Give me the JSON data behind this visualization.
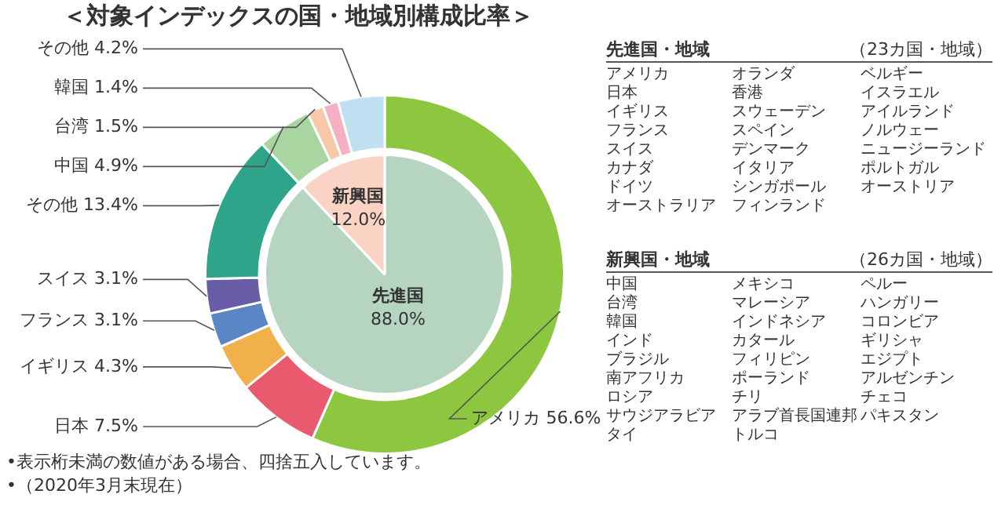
{
  "chart_data": [
    {
      "type": "donut",
      "title": "＜対象インデックスの国・地域別構成比率＞",
      "categories": [
        "アメリカ",
        "日本",
        "イギリス",
        "フランス",
        "スイス",
        "その他",
        "中国",
        "台湾",
        "韓国",
        "その他"
      ],
      "values": [
        56.6,
        7.5,
        4.3,
        3.1,
        3.1,
        13.4,
        4.9,
        1.5,
        1.4,
        4.2
      ],
      "value_labels": [
        "56.6%",
        "7.5%",
        "4.3%",
        "3.1%",
        "3.1%",
        "13.4%",
        "4.9%",
        "1.5%",
        "1.4%",
        "4.2%"
      ],
      "colors": [
        "#8dc63f",
        "#e95a6e",
        "#f0b14a",
        "#5b86c5",
        "#6a5da8",
        "#2ea58a",
        "#a8d5a0",
        "#f7c9a8",
        "#f6b0c4",
        "#c0dff0"
      ],
      "legend": false,
      "annotations": [
        "•表示桁未満の数値がある場合、四捨五入しています。",
        "•（2020年3月末現在）"
      ]
    },
    {
      "type": "pie",
      "categories": [
        "先進国",
        "新興国"
      ],
      "values": [
        88.0,
        12.0
      ],
      "value_labels": [
        "88.0%",
        "12.0%"
      ],
      "colors": [
        "#b5d5c0",
        "#fbd3c5"
      ],
      "legend": false
    },
    {
      "type": "other",
      "title": "先進国・地域",
      "subtitle": "（23カ国・地域）",
      "annotations": [
        "アメリカ",
        "日本",
        "イギリス",
        "フランス",
        "スイス",
        "カナダ",
        "ドイツ",
        "オーストラリア",
        "オランダ",
        "香港",
        "スウェーデン",
        "スペイン",
        "デンマーク",
        "イタリア",
        "シンガポール",
        "フィンランド",
        "ベルギー",
        "イスラエル",
        "アイルランド",
        "ノルウェー",
        "ニュージーランド",
        "ポルトガル",
        "オーストリア"
      ]
    },
    {
      "type": "other",
      "title": "新興国・地域",
      "subtitle": "（26カ国・地域）",
      "annotations": [
        "中国",
        "台湾",
        "韓国",
        "インド",
        "ブラジル",
        "南アフリカ",
        "ロシア",
        "サウジアラビア",
        "タイ",
        "メキシコ",
        "マレーシア",
        "インドネシア",
        "カタール",
        "フィリピン",
        "ポーランド",
        "チリ",
        "アラブ首長国連邦",
        "トルコ",
        "ペルー",
        "ハンガリー",
        "コロンビア",
        "ギリシャ",
        "エジプト",
        "アルゼンチン",
        "チェコ",
        "パキスタン"
      ]
    }
  ]
}
